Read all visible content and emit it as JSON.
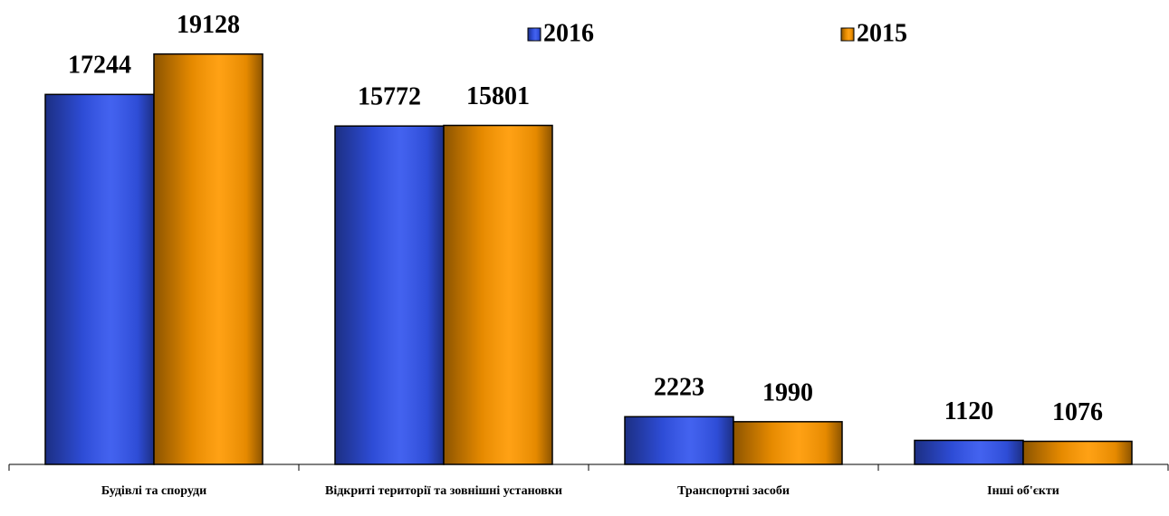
{
  "chart_data": {
    "type": "bar",
    "categories": [
      "Будівлі та споруди",
      "Відкриті території та зовнішні установки",
      "Транспортні засоби",
      "Інші об'єкти"
    ],
    "series": [
      {
        "name": "2016",
        "color": "#3355ee",
        "values": [
          17244,
          15772,
          2223,
          1120
        ]
      },
      {
        "name": "2015",
        "color": "#ff9900",
        "values": [
          19128,
          15801,
          1990,
          1076
        ]
      }
    ],
    "ylim": [
      0,
      20000
    ]
  }
}
